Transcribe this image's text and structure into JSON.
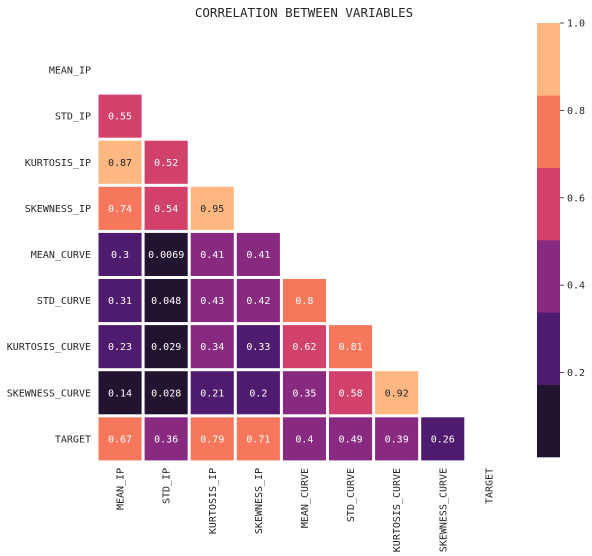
{
  "chart_data": {
    "type": "heatmap",
    "title": "CORRELATION BETWEEN VARIABLES",
    "xlabel": "",
    "ylabel": "",
    "mask": "upper-triangle-and-diagonal",
    "variables": [
      "MEAN_IP",
      "STD_IP",
      "KURTOSIS_IP",
      "SKEWNESS_IP",
      "MEAN_CURVE",
      "STD_CURVE",
      "KURTOSIS_CURVE",
      "SKEWNESS_CURVE",
      "TARGET"
    ],
    "cells": [
      {
        "row": "STD_IP",
        "col": "MEAN_IP",
        "value": 0.55,
        "label": "0.55"
      },
      {
        "row": "KURTOSIS_IP",
        "col": "MEAN_IP",
        "value": 0.87,
        "label": "0.87"
      },
      {
        "row": "KURTOSIS_IP",
        "col": "STD_IP",
        "value": 0.52,
        "label": "0.52"
      },
      {
        "row": "SKEWNESS_IP",
        "col": "MEAN_IP",
        "value": 0.74,
        "label": "0.74"
      },
      {
        "row": "SKEWNESS_IP",
        "col": "STD_IP",
        "value": 0.54,
        "label": "0.54"
      },
      {
        "row": "SKEWNESS_IP",
        "col": "KURTOSIS_IP",
        "value": 0.95,
        "label": "0.95"
      },
      {
        "row": "MEAN_CURVE",
        "col": "MEAN_IP",
        "value": 0.3,
        "label": "0.3"
      },
      {
        "row": "MEAN_CURVE",
        "col": "STD_IP",
        "value": 0.0069,
        "label": "0.0069"
      },
      {
        "row": "MEAN_CURVE",
        "col": "KURTOSIS_IP",
        "value": 0.41,
        "label": "0.41"
      },
      {
        "row": "MEAN_CURVE",
        "col": "SKEWNESS_IP",
        "value": 0.41,
        "label": "0.41"
      },
      {
        "row": "STD_CURVE",
        "col": "MEAN_IP",
        "value": 0.31,
        "label": "0.31"
      },
      {
        "row": "STD_CURVE",
        "col": "STD_IP",
        "value": 0.048,
        "label": "0.048"
      },
      {
        "row": "STD_CURVE",
        "col": "KURTOSIS_IP",
        "value": 0.43,
        "label": "0.43"
      },
      {
        "row": "STD_CURVE",
        "col": "SKEWNESS_IP",
        "value": 0.42,
        "label": "0.42"
      },
      {
        "row": "STD_CURVE",
        "col": "MEAN_CURVE",
        "value": 0.8,
        "label": "0.8"
      },
      {
        "row": "KURTOSIS_CURVE",
        "col": "MEAN_IP",
        "value": 0.23,
        "label": "0.23"
      },
      {
        "row": "KURTOSIS_CURVE",
        "col": "STD_IP",
        "value": 0.029,
        "label": "0.029"
      },
      {
        "row": "KURTOSIS_CURVE",
        "col": "KURTOSIS_IP",
        "value": 0.34,
        "label": "0.34"
      },
      {
        "row": "KURTOSIS_CURVE",
        "col": "SKEWNESS_IP",
        "value": 0.33,
        "label": "0.33"
      },
      {
        "row": "KURTOSIS_CURVE",
        "col": "MEAN_CURVE",
        "value": 0.62,
        "label": "0.62"
      },
      {
        "row": "KURTOSIS_CURVE",
        "col": "STD_CURVE",
        "value": 0.81,
        "label": "0.81"
      },
      {
        "row": "SKEWNESS_CURVE",
        "col": "MEAN_IP",
        "value": 0.14,
        "label": "0.14"
      },
      {
        "row": "SKEWNESS_CURVE",
        "col": "STD_IP",
        "value": 0.028,
        "label": "0.028"
      },
      {
        "row": "SKEWNESS_CURVE",
        "col": "KURTOSIS_IP",
        "value": 0.21,
        "label": "0.21"
      },
      {
        "row": "SKEWNESS_CURVE",
        "col": "SKEWNESS_IP",
        "value": 0.2,
        "label": "0.2"
      },
      {
        "row": "SKEWNESS_CURVE",
        "col": "MEAN_CURVE",
        "value": 0.35,
        "label": "0.35"
      },
      {
        "row": "SKEWNESS_CURVE",
        "col": "STD_CURVE",
        "value": 0.58,
        "label": "0.58"
      },
      {
        "row": "SKEWNESS_CURVE",
        "col": "KURTOSIS_CURVE",
        "value": 0.92,
        "label": "0.92"
      },
      {
        "row": "TARGET",
        "col": "MEAN_IP",
        "value": 0.67,
        "label": "0.67"
      },
      {
        "row": "TARGET",
        "col": "STD_IP",
        "value": 0.36,
        "label": "0.36"
      },
      {
        "row": "TARGET",
        "col": "KURTOSIS_IP",
        "value": 0.79,
        "label": "0.79"
      },
      {
        "row": "TARGET",
        "col": "SKEWNESS_IP",
        "value": 0.71,
        "label": "0.71"
      },
      {
        "row": "TARGET",
        "col": "MEAN_CURVE",
        "value": 0.4,
        "label": "0.4"
      },
      {
        "row": "TARGET",
        "col": "STD_CURVE",
        "value": 0.49,
        "label": "0.49"
      },
      {
        "row": "TARGET",
        "col": "KURTOSIS_CURVE",
        "value": 0.39,
        "label": "0.39"
      },
      {
        "row": "TARGET",
        "col": "SKEWNESS_CURVE",
        "value": 0.26,
        "label": "0.26"
      }
    ],
    "colorbar": {
      "range": [
        0.0069,
        1.0
      ],
      "ticks": [
        0.2,
        0.4,
        0.6,
        0.8,
        1.0
      ],
      "tick_labels": [
        "0.2",
        "0.4",
        "0.6",
        "0.8",
        "1.0"
      ],
      "bins": 6,
      "colors": [
        "#221331",
        "#4f1b6e",
        "#892a81",
        "#d2416a",
        "#f6775b",
        "#ffb782"
      ]
    },
    "text_color_light": "#ffffff",
    "text_color_dark": "#262626",
    "grid": false,
    "legend": "colorbar-right"
  }
}
